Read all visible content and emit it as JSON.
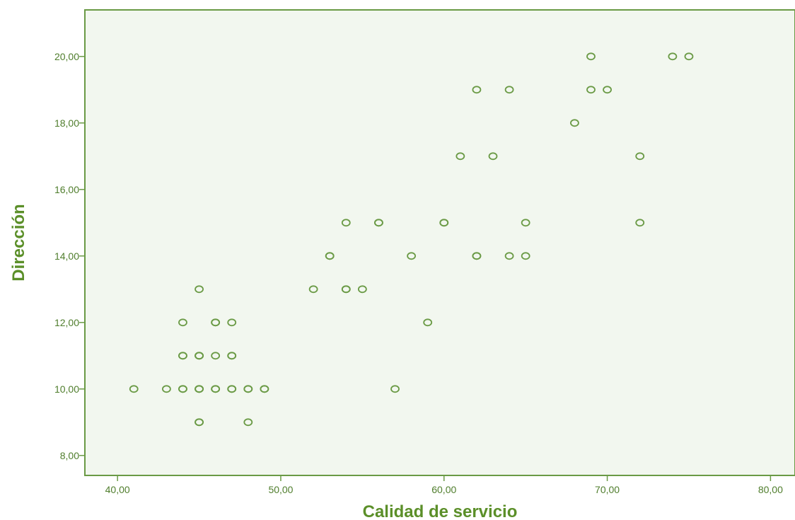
{
  "chart_data": {
    "type": "scatter",
    "xlabel": "Calidad de servicio",
    "ylabel": "Dirección",
    "xlim": [
      38,
      81.5
    ],
    "ylim": [
      7.4,
      21.4
    ],
    "x_ticks": [
      40,
      50,
      60,
      70,
      80
    ],
    "y_ticks": [
      8,
      10,
      12,
      14,
      16,
      18,
      20
    ],
    "x_tick_labels": [
      "40,00",
      "50,00",
      "60,00",
      "70,00",
      "80,00"
    ],
    "y_tick_labels": [
      "8,00",
      "10,00",
      "12,00",
      "14,00",
      "16,00",
      "18,00",
      "20,00"
    ],
    "grid": false,
    "colors": {
      "plot_background": "#f2f7ef",
      "axis": "#6a9a45",
      "marker": "#6a9a45",
      "label": "#5b8f29"
    },
    "points": [
      {
        "x": 41,
        "y": 10
      },
      {
        "x": 43,
        "y": 10
      },
      {
        "x": 44,
        "y": 10
      },
      {
        "x": 44,
        "y": 10
      },
      {
        "x": 45,
        "y": 10
      },
      {
        "x": 45,
        "y": 10
      },
      {
        "x": 45,
        "y": 10
      },
      {
        "x": 46,
        "y": 10
      },
      {
        "x": 46,
        "y": 10
      },
      {
        "x": 47,
        "y": 10
      },
      {
        "x": 47,
        "y": 10
      },
      {
        "x": 48,
        "y": 10
      },
      {
        "x": 48,
        "y": 10
      },
      {
        "x": 49,
        "y": 10
      },
      {
        "x": 49,
        "y": 10
      },
      {
        "x": 57,
        "y": 10
      },
      {
        "x": 45,
        "y": 9
      },
      {
        "x": 45,
        "y": 9
      },
      {
        "x": 48,
        "y": 9
      },
      {
        "x": 44,
        "y": 11
      },
      {
        "x": 44,
        "y": 11
      },
      {
        "x": 45,
        "y": 11
      },
      {
        "x": 45,
        "y": 11
      },
      {
        "x": 45,
        "y": 11
      },
      {
        "x": 46,
        "y": 11
      },
      {
        "x": 47,
        "y": 11
      },
      {
        "x": 47,
        "y": 11
      },
      {
        "x": 44,
        "y": 12
      },
      {
        "x": 46,
        "y": 12
      },
      {
        "x": 46,
        "y": 12
      },
      {
        "x": 47,
        "y": 12
      },
      {
        "x": 59,
        "y": 12
      },
      {
        "x": 45,
        "y": 13
      },
      {
        "x": 52,
        "y": 13
      },
      {
        "x": 54,
        "y": 13
      },
      {
        "x": 54,
        "y": 13
      },
      {
        "x": 55,
        "y": 13
      },
      {
        "x": 53,
        "y": 14
      },
      {
        "x": 53,
        "y": 14
      },
      {
        "x": 58,
        "y": 14
      },
      {
        "x": 62,
        "y": 14
      },
      {
        "x": 62,
        "y": 14
      },
      {
        "x": 64,
        "y": 14
      },
      {
        "x": 65,
        "y": 14
      },
      {
        "x": 54,
        "y": 15
      },
      {
        "x": 56,
        "y": 15
      },
      {
        "x": 56,
        "y": 15
      },
      {
        "x": 60,
        "y": 15
      },
      {
        "x": 60,
        "y": 15
      },
      {
        "x": 65,
        "y": 15
      },
      {
        "x": 72,
        "y": 15
      },
      {
        "x": 61,
        "y": 17
      },
      {
        "x": 63,
        "y": 17
      },
      {
        "x": 72,
        "y": 17
      },
      {
        "x": 68,
        "y": 18
      },
      {
        "x": 62,
        "y": 19
      },
      {
        "x": 64,
        "y": 19
      },
      {
        "x": 69,
        "y": 19
      },
      {
        "x": 70,
        "y": 19
      },
      {
        "x": 69,
        "y": 20
      },
      {
        "x": 74,
        "y": 20
      },
      {
        "x": 75,
        "y": 20
      }
    ]
  }
}
